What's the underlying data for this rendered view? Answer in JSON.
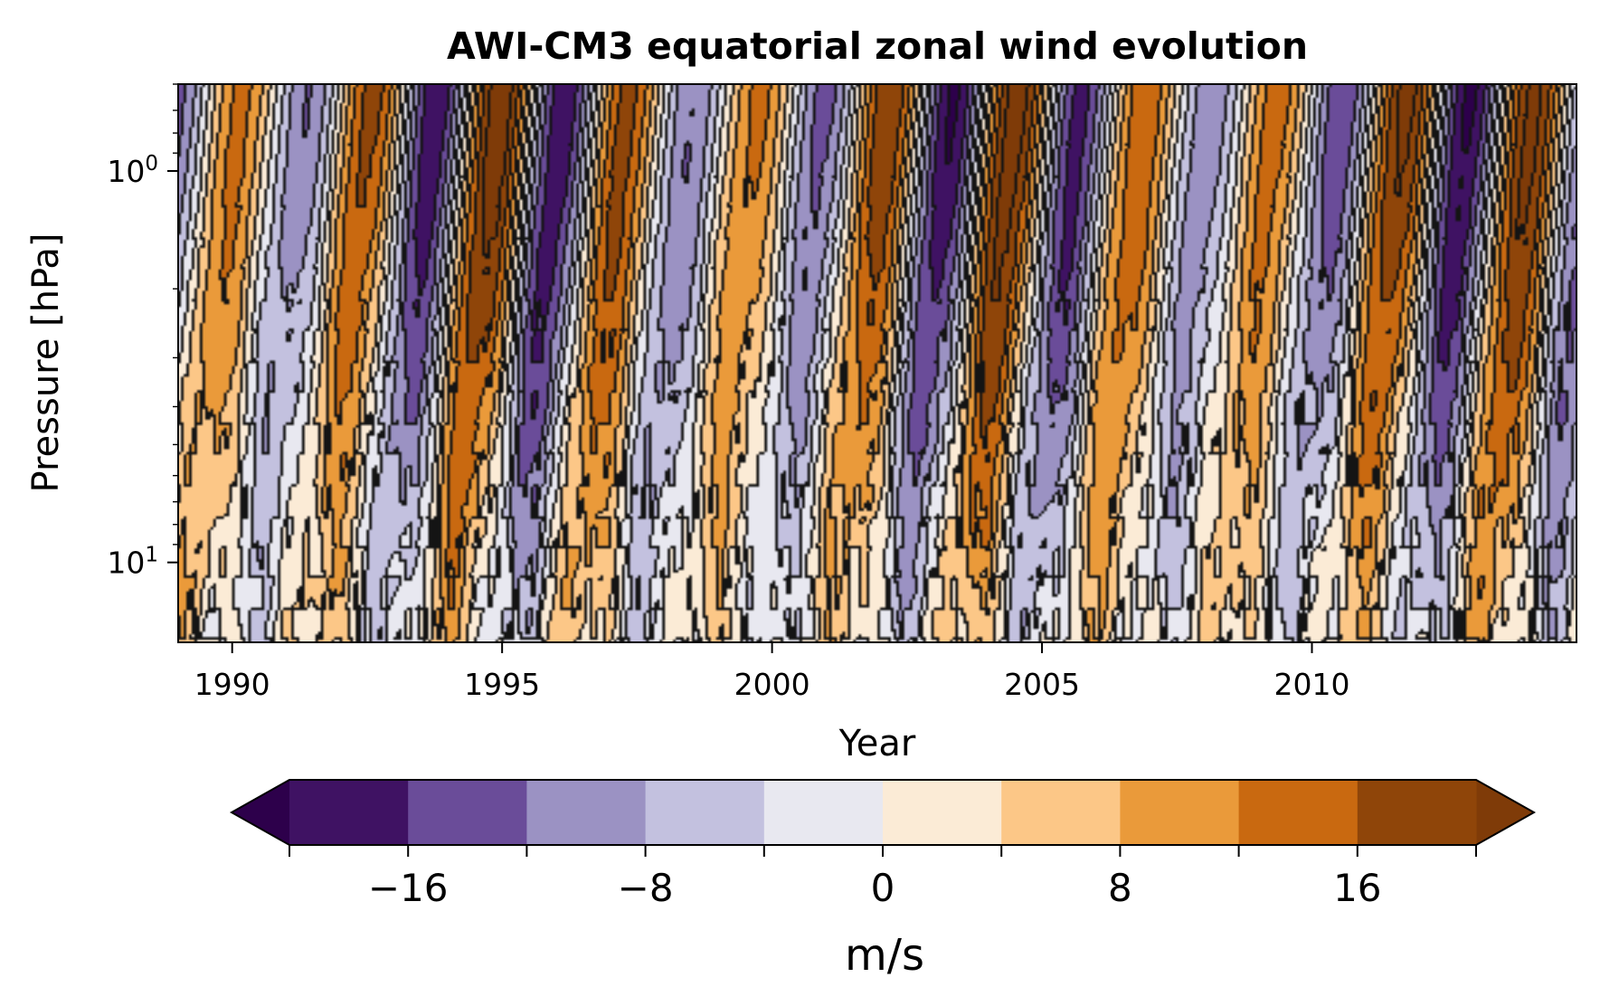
{
  "chart_data": {
    "type": "heatmap",
    "title": "AWI-CM3 equatorial zonal wind evolution",
    "xlabel": "Year",
    "ylabel": "Pressure [hPa]",
    "xlim": [
      1989.0,
      2014.9
    ],
    "ylim_hpa": [
      0.6,
      16.0
    ],
    "y_scale": "log",
    "y_inverted": true,
    "x_ticks": [
      1990,
      1995,
      2000,
      2005,
      2010
    ],
    "x_tick_labels": [
      "1990",
      "1995",
      "2000",
      "2005",
      "2010"
    ],
    "y_ticks": [
      1,
      10
    ],
    "y_tick_labels": [
      {
        "base": "10",
        "exp": "0"
      },
      {
        "base": "10",
        "exp": "1"
      }
    ],
    "qbo_period_years": 2.4,
    "qbo_amplitude_ms": 20,
    "colorbar": {
      "label": "m/s",
      "levels": [
        -20,
        -16,
        -12,
        -8,
        -4,
        0,
        4,
        8,
        12,
        16,
        20
      ],
      "tick_values": [
        -16,
        -8,
        0,
        8,
        16
      ],
      "tick_labels": [
        "−16",
        "−8",
        "0",
        "8",
        "16"
      ],
      "extend": "both",
      "under_color": "#2d004b",
      "over_color": "#7f3b08",
      "colors": [
        "#3f1263",
        "#6a4c99",
        "#9b92c3",
        "#c3c1df",
        "#e8e8f0",
        "#fbebd6",
        "#fcc787",
        "#ea9a3a",
        "#c96910",
        "#8f4509"
      ]
    }
  }
}
